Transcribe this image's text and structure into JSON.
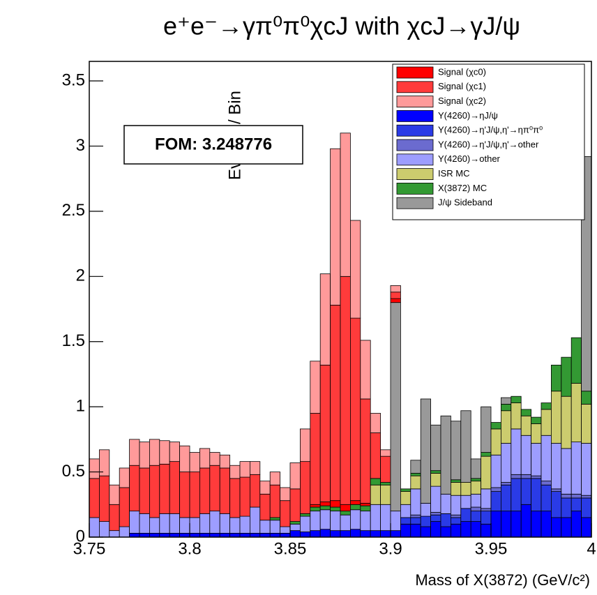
{
  "chart_data": {
    "type": "stacked-histogram",
    "title": "e⁺e⁻→γπ⁰π⁰χcJ with χcJ→γJ/ψ",
    "y_label": "Events / Bin",
    "x_label": "Mass of X(3872) (GeV/c²)",
    "annotation": "FOM: 3.248776",
    "bins": [
      3.75,
      3.755,
      3.76,
      3.765,
      3.77,
      3.775,
      3.78,
      3.785,
      3.79,
      3.795,
      3.8,
      3.805,
      3.81,
      3.815,
      3.82,
      3.825,
      3.83,
      3.835,
      3.84,
      3.845,
      3.85,
      3.855,
      3.86,
      3.865,
      3.87,
      3.875,
      3.88,
      3.885,
      3.89,
      3.895,
      3.9,
      3.905,
      3.91,
      3.915,
      3.92,
      3.925,
      3.93,
      3.935,
      3.94,
      3.945,
      3.95,
      3.955,
      3.96,
      3.965,
      3.97,
      3.975,
      3.98,
      3.985,
      3.99,
      3.995,
      4.0
    ],
    "xlim": [
      3.75,
      4.0
    ],
    "xticks": [
      3.75,
      3.8,
      3.85,
      3.9,
      3.95,
      4
    ],
    "ylim": [
      0,
      3.65
    ],
    "yticks": [
      0,
      0.5,
      1,
      1.5,
      2,
      2.5,
      3,
      3.5
    ],
    "series": [
      {
        "name": "Signal (χc0)",
        "color": "#ff0000",
        "values": [
          0,
          0,
          0,
          0,
          0,
          0,
          0,
          0,
          0,
          0,
          0,
          0,
          0,
          0,
          0,
          0,
          0,
          0,
          0,
          0,
          0,
          0,
          0.02,
          0.03,
          0.05,
          0.05,
          0.03,
          0.02,
          0,
          0,
          0.03,
          0,
          0,
          0,
          0,
          0,
          0,
          0,
          0,
          0,
          0,
          0,
          0,
          0,
          0,
          0,
          0,
          0,
          0,
          0
        ]
      },
      {
        "name": "Signal (χc1)",
        "color": "#ff3b3b",
        "values": [
          0.3,
          0.35,
          0.2,
          0.3,
          0.35,
          0.35,
          0.4,
          0.38,
          0.4,
          0.35,
          0.35,
          0.35,
          0.35,
          0.35,
          0.3,
          0.3,
          0.25,
          0.2,
          0.25,
          0.2,
          0.25,
          0.4,
          0.7,
          1.05,
          1.5,
          1.75,
          1.4,
          0.8,
          0.35,
          0.2,
          0.05,
          0,
          0,
          0,
          0,
          0,
          0,
          0,
          0,
          0,
          0,
          0,
          0,
          0,
          0,
          0,
          0,
          0,
          0,
          0
        ]
      },
      {
        "name": "Signal (χc2)",
        "color": "#ff9a9a",
        "values": [
          0.15,
          0.2,
          0.15,
          0.15,
          0.2,
          0.2,
          0.2,
          0.18,
          0.15,
          0.2,
          0.15,
          0.15,
          0.1,
          0.1,
          0.1,
          0.12,
          0.1,
          0.1,
          0.1,
          0.1,
          0.2,
          0.25,
          0.4,
          0.7,
          1.2,
          1.1,
          0.75,
          0.45,
          0.15,
          0.05,
          0.05,
          0,
          0,
          0,
          0,
          0,
          0,
          0,
          0,
          0,
          0,
          0,
          0,
          0,
          0,
          0,
          0,
          0,
          0,
          0
        ]
      },
      {
        "name": "Y(4260)→ηJ/ψ",
        "color": "#0000ff",
        "values": [
          0,
          0,
          0,
          0,
          0.03,
          0.03,
          0.03,
          0.03,
          0.03,
          0.03,
          0.03,
          0.03,
          0.03,
          0.03,
          0.03,
          0.03,
          0.03,
          0.03,
          0.03,
          0.03,
          0.05,
          0.04,
          0.05,
          0.06,
          0.05,
          0.05,
          0.06,
          0.05,
          0.05,
          0.05,
          0.05,
          0.1,
          0.1,
          0.08,
          0.12,
          0.08,
          0.1,
          0.12,
          0.12,
          0.1,
          0.2,
          0.2,
          0.2,
          0.25,
          0.2,
          0.2,
          0.15,
          0.15,
          0.2,
          0.15
        ]
      },
      {
        "name": "Y(4260)→η'J/ψ,η'→ηπ⁰π⁰",
        "color": "#2a3be6",
        "values": [
          0,
          0,
          0,
          0,
          0,
          0,
          0,
          0,
          0,
          0,
          0,
          0,
          0,
          0,
          0,
          0,
          0,
          0,
          0,
          0,
          0,
          0,
          0,
          0,
          0,
          0,
          0,
          0,
          0,
          0,
          0,
          0.05,
          0.05,
          0.08,
          0.05,
          0.1,
          0.05,
          0.1,
          0.08,
          0.1,
          0.15,
          0.2,
          0.25,
          0.2,
          0.25,
          0.2,
          0.2,
          0.15,
          0.1,
          0.15
        ]
      },
      {
        "name": "Y(4260)→η'J/ψ,η'→other",
        "color": "#6b6bcf",
        "values": [
          0,
          0,
          0,
          0,
          0,
          0,
          0,
          0,
          0,
          0,
          0,
          0,
          0,
          0,
          0,
          0,
          0,
          0,
          0,
          0,
          0,
          0,
          0,
          0,
          0,
          0,
          0,
          0,
          0,
          0,
          0,
          0,
          0.02,
          0,
          0.02,
          0,
          0.02,
          0,
          0.03,
          0.02,
          0.03,
          0.02,
          0.03,
          0.03,
          0.02,
          0.03,
          0.02,
          0.03,
          0.03,
          0.02
        ]
      },
      {
        "name": "Y(4260)→other",
        "color": "#9d9dff",
        "values": [
          0.15,
          0.12,
          0.05,
          0.08,
          0.17,
          0.15,
          0.12,
          0.15,
          0.15,
          0.12,
          0.12,
          0.15,
          0.17,
          0.15,
          0.12,
          0.13,
          0.2,
          0.1,
          0.1,
          0.05,
          0.05,
          0.12,
          0.15,
          0.15,
          0.15,
          0.12,
          0.15,
          0.15,
          0.2,
          0.2,
          0.15,
          0.1,
          0.2,
          0.1,
          0.2,
          0.15,
          0.15,
          0.1,
          0.1,
          0.15,
          0.25,
          0.3,
          0.35,
          0.3,
          0.25,
          0.35,
          0.35,
          0.35,
          0.4,
          0.4
        ]
      },
      {
        "name": "ISR MC",
        "color": "#cccc6e",
        "values": [
          0,
          0,
          0,
          0,
          0,
          0,
          0,
          0,
          0,
          0,
          0,
          0,
          0,
          0,
          0,
          0,
          0,
          0,
          0,
          0,
          0,
          0,
          0,
          0,
          0,
          0,
          0,
          0,
          0.15,
          0.15,
          0,
          0.1,
          0.1,
          0,
          0.1,
          0,
          0.1,
          0.1,
          0.1,
          0.25,
          0.2,
          0.25,
          0.2,
          0.15,
          0.15,
          0.2,
          0.4,
          0.4,
          0.45,
          0.3
        ]
      },
      {
        "name": "X(3872) MC",
        "color": "#339933",
        "values": [
          0,
          0,
          0,
          0,
          0,
          0,
          0,
          0,
          0,
          0,
          0,
          0,
          0,
          0,
          0,
          0,
          0,
          0,
          0.02,
          0,
          0.02,
          0.02,
          0.03,
          0.03,
          0.03,
          0.03,
          0.04,
          0.04,
          0.05,
          0.02,
          0,
          0.02,
          0.02,
          0,
          0.02,
          0,
          0.02,
          0,
          0.02,
          0.03,
          0.05,
          0.05,
          0.05,
          0.05,
          0.05,
          0.05,
          0.2,
          0.3,
          0.35,
          0.1
        ]
      },
      {
        "name": "J/ψ Sideband",
        "color": "#999999",
        "values": [
          0,
          0,
          0,
          0,
          0,
          0,
          0,
          0,
          0,
          0,
          0,
          0,
          0,
          0,
          0,
          0,
          0,
          0,
          0,
          0,
          0,
          0,
          0,
          0,
          0,
          0,
          0,
          0,
          0,
          0,
          1.6,
          0,
          0.1,
          0.8,
          0.35,
          0.6,
          0.45,
          0.55,
          0.15,
          0.35,
          0,
          0.05,
          0,
          0,
          0,
          0,
          0,
          0,
          0,
          1.8
        ]
      }
    ]
  }
}
